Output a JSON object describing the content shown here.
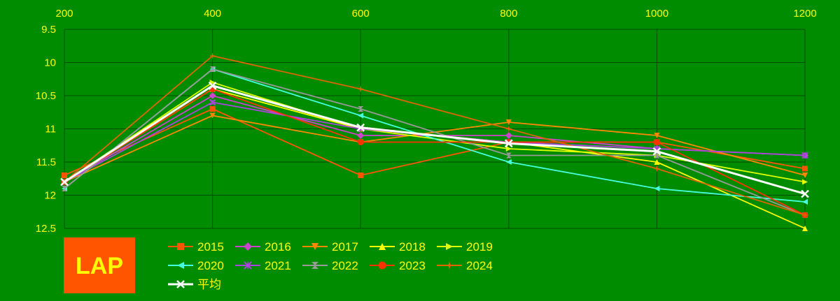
{
  "chart_data": {
    "type": "line",
    "x": [
      200,
      400,
      600,
      800,
      1000,
      1200
    ],
    "y_ticks": [
      9.5,
      10,
      10.5,
      11,
      11.5,
      12,
      12.5
    ],
    "ylim": [
      9.5,
      12.5
    ],
    "y_inverted": true,
    "x_axis_position": "top",
    "grid": true,
    "legend_position": "bottom-left",
    "badge": "LAP",
    "series": [
      {
        "name": "2015",
        "color": "#ff5500",
        "marker": "square",
        "values": [
          11.7,
          10.7,
          11.7,
          11.2,
          11.2,
          11.6
        ]
      },
      {
        "name": "2016",
        "color": "#cc44cc",
        "marker": "diamond",
        "values": [
          11.8,
          10.5,
          11.1,
          11.1,
          11.3,
          11.4
        ]
      },
      {
        "name": "2017",
        "color": "#ff8800",
        "marker": "tri-down",
        "values": [
          11.8,
          10.8,
          11.2,
          10.9,
          11.1,
          11.7
        ]
      },
      {
        "name": "2018",
        "color": "#ffff00",
        "marker": "tri-up",
        "values": [
          11.8,
          10.4,
          11.0,
          11.2,
          11.5,
          12.5
        ]
      },
      {
        "name": "2019",
        "color": "#ddff00",
        "marker": "tri-right",
        "values": [
          11.8,
          10.3,
          11.0,
          11.3,
          11.4,
          11.8
        ]
      },
      {
        "name": "2020",
        "color": "#44ffdd",
        "marker": "tri-left",
        "values": [
          11.9,
          10.1,
          10.8,
          11.5,
          11.9,
          12.1
        ]
      },
      {
        "name": "2021",
        "color": "#aa44dd",
        "marker": "cross",
        "values": [
          11.8,
          10.6,
          11.0,
          11.2,
          11.3,
          11.4
        ]
      },
      {
        "name": "2022",
        "color": "#999999",
        "marker": "hourglass",
        "values": [
          11.9,
          10.1,
          10.7,
          11.4,
          11.4,
          12.3
        ]
      },
      {
        "name": "2023",
        "color": "#ff3300",
        "marker": "circle",
        "values": [
          11.8,
          10.4,
          11.2,
          11.2,
          11.2,
          12.3
        ]
      },
      {
        "name": "2024",
        "color": "#dd6600",
        "marker": "star",
        "values": [
          11.8,
          9.9,
          10.4,
          11.0,
          11.6,
          12.3
        ]
      },
      {
        "name": "平均",
        "color": "#ffffff",
        "marker": "x",
        "values": [
          11.8,
          10.35,
          10.98,
          11.22,
          11.34,
          11.98
        ]
      }
    ]
  }
}
